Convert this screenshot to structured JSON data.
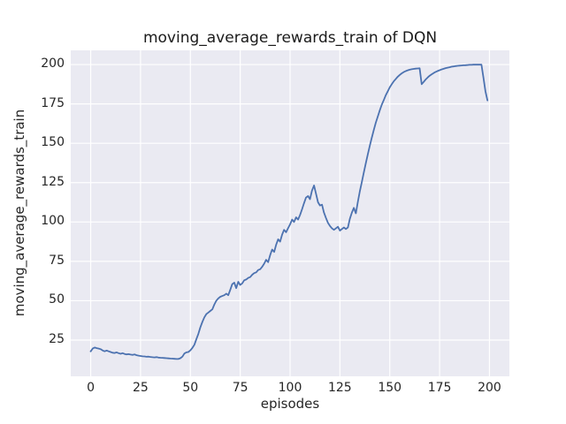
{
  "chart_data": {
    "type": "line",
    "title": "moving_average_rewards_train of DQN",
    "xlabel": "episodes",
    "ylabel": "moving_average_rewards_train",
    "xticks": [
      0,
      25,
      50,
      75,
      100,
      125,
      150,
      175,
      200
    ],
    "yticks": [
      25,
      50,
      75,
      100,
      125,
      150,
      175,
      200
    ],
    "xlim": [
      -10,
      210
    ],
    "ylim": [
      2,
      209
    ],
    "grid": true,
    "legend": "none",
    "colors": {
      "line": "#4C72B0",
      "axes_bg": "#EAEAF2",
      "grid": "#FFFFFF",
      "text": "#262626"
    },
    "series": [
      {
        "name": "moving_average_rewards_train",
        "x_start": 0,
        "x_step": 1,
        "values": [
          17.8,
          19.6,
          20.3,
          19.9,
          19.6,
          19.2,
          18.4,
          17.9,
          18.3,
          17.9,
          17.4,
          17.0,
          16.8,
          17.2,
          16.7,
          16.3,
          16.7,
          16.2,
          15.9,
          16.1,
          15.8,
          15.6,
          15.9,
          15.4,
          15.1,
          14.9,
          14.7,
          14.6,
          14.4,
          14.5,
          14.3,
          14.1,
          14.0,
          14.2,
          13.9,
          13.8,
          13.7,
          13.6,
          13.5,
          13.4,
          13.3,
          13.2,
          13.1,
          13.0,
          13.0,
          13.5,
          14.5,
          16.5,
          17.2,
          17.4,
          18.5,
          20.0,
          22.0,
          25.5,
          29.0,
          33.0,
          36.5,
          39.5,
          41.5,
          42.5,
          43.5,
          44.5,
          47.5,
          50.0,
          51.5,
          52.5,
          53.0,
          53.5,
          54.5,
          53.5,
          57.0,
          60.5,
          61.5,
          58.0,
          62.0,
          60.0,
          61.0,
          63.0,
          63.5,
          64.5,
          65.0,
          66.5,
          67.5,
          68.0,
          69.5,
          70.0,
          71.5,
          73.5,
          76.0,
          74.5,
          79.0,
          82.5,
          81.0,
          85.5,
          89.0,
          87.5,
          92.0,
          95.0,
          93.5,
          96.0,
          98.5,
          101.5,
          100.0,
          103.0,
          101.5,
          104.5,
          108.0,
          112.0,
          115.5,
          116.5,
          114.5,
          120.0,
          123.2,
          118.0,
          112.5,
          110.5,
          111.0,
          106.0,
          102.5,
          99.5,
          97.5,
          96.0,
          95.0,
          96.0,
          97.0,
          94.5,
          95.5,
          96.5,
          95.5,
          96.5,
          102.0,
          106.0,
          109.0,
          105.5,
          113.0,
          119.5,
          125.5,
          131.5,
          137.5,
          143.0,
          148.5,
          153.5,
          158.5,
          163.0,
          167.0,
          171.0,
          174.5,
          177.5,
          180.5,
          183.0,
          185.5,
          187.5,
          189.3,
          190.8,
          192.2,
          193.4,
          194.4,
          195.2,
          195.8,
          196.3,
          196.7,
          197.0,
          197.2,
          197.4,
          197.5,
          197.6,
          187.5,
          189.0,
          190.5,
          191.8,
          192.9,
          193.8,
          194.6,
          195.3,
          195.9,
          196.4,
          196.9,
          197.3,
          197.7,
          198.0,
          198.3,
          198.6,
          198.8,
          199.0,
          199.2,
          199.3,
          199.4,
          199.5,
          199.6,
          199.7,
          199.8,
          199.8,
          199.9,
          199.9,
          199.9,
          199.9,
          199.9,
          191.5,
          183.0,
          177.2
        ]
      }
    ]
  }
}
